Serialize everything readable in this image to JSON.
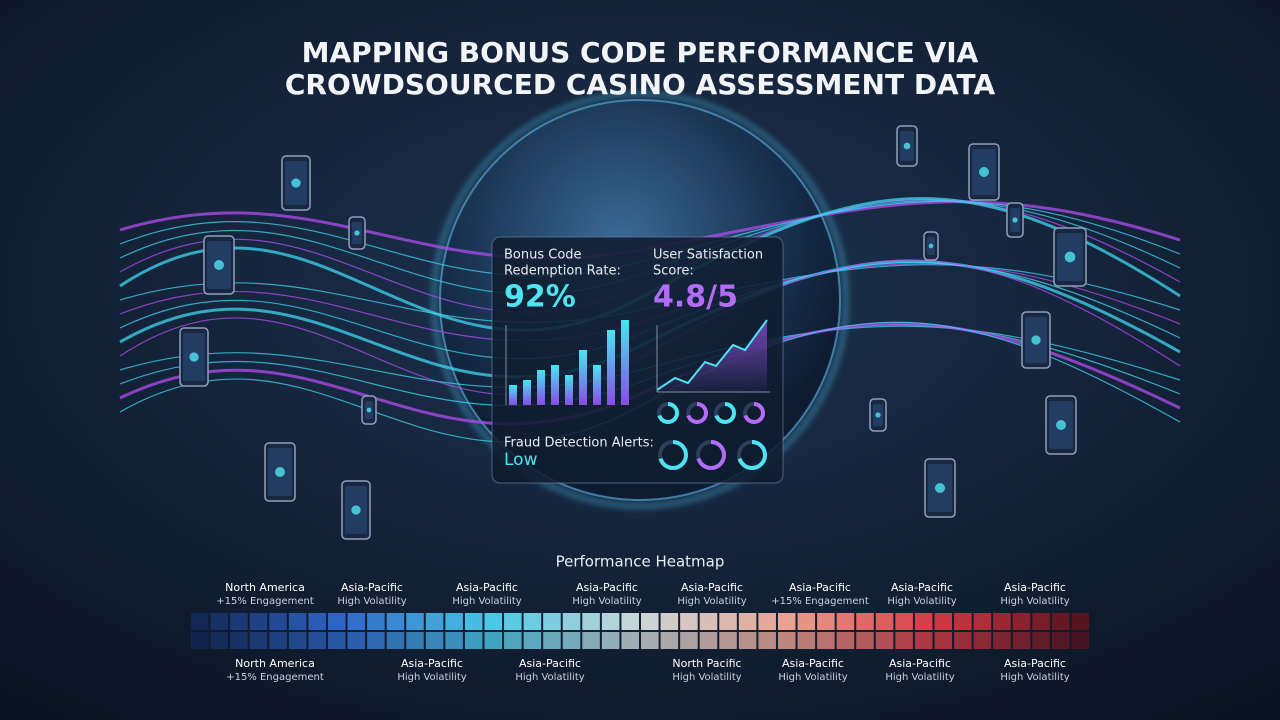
{
  "header": {
    "title": [
      "MAPPING BONUS CODE PERFORMANCE VIA",
      "CROWDSOURCED CASINO ASSESSMENT DATA"
    ]
  },
  "panel": {
    "redemption": {
      "label": [
        "Bonus Code",
        "Redemption Rate:"
      ],
      "value": "92%"
    },
    "satisfaction": {
      "label": [
        "User Satisfaction",
        "Score:"
      ],
      "value": "4.8/5"
    },
    "fraud": {
      "label": "Fraud Detection Alerts:",
      "value": "Low"
    }
  },
  "heatmap": {
    "title": "Performance Heatmap",
    "top_labels": [
      {
        "region": "North America",
        "note": "+15% Engagement"
      },
      {
        "region": "Asia-Pacific",
        "note": "High Volatility"
      },
      {
        "region": "Asia-Pacific",
        "note": "High Volatility"
      },
      {
        "region": "Asia-Pacific",
        "note": "High Volatility"
      },
      {
        "region": "Asia-Pacific",
        "note": "High Volatility"
      },
      {
        "region": "Asia-Pacific",
        "note": "+15% Engagement"
      },
      {
        "region": "Asia-Pacific",
        "note": "High Volatility"
      },
      {
        "region": "Asia-Pacific",
        "note": "High Volatility"
      }
    ],
    "bottom_labels": [
      {
        "region": "North America",
        "note": "+15% Engagement"
      },
      {
        "region": "Asia-Pacific",
        "note": "High Volatility"
      },
      {
        "region": "Asia-Pacific",
        "note": "High Volatility"
      },
      {
        "region": "North Pacific",
        "note": "High Volatility"
      },
      {
        "region": "Asia-Pacific",
        "note": "High Volatility"
      },
      {
        "region": "Asia-Pacific",
        "note": "High Volatility"
      },
      {
        "region": "Asia-Pacific",
        "note": "High Volatility"
      }
    ]
  }
}
